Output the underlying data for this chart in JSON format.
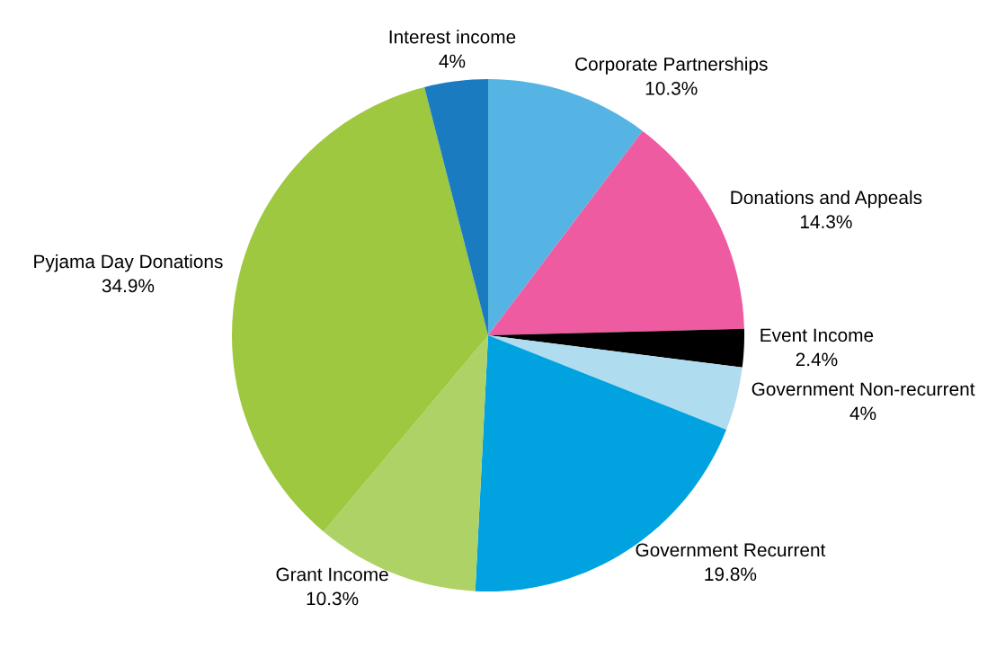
{
  "chart_data": {
    "type": "pie",
    "categories": [
      "Corporate Partnerships",
      "Donations and Appeals",
      "Event Income",
      "Government Non-recurrent",
      "Government Recurrent",
      "Grant Income",
      "Pyjama Day Donations",
      "Interest income"
    ],
    "values": [
      10.3,
      14.3,
      2.4,
      4,
      19.8,
      10.3,
      34.9,
      4
    ],
    "value_labels": [
      "10.3%",
      "14.3%",
      "2.4%",
      "4%",
      "19.8%",
      "10.3%",
      "34.9%",
      "4%"
    ],
    "colors": [
      "#56b4e4",
      "#ef5ba1",
      "#000000",
      "#b0dcf0",
      "#00a3e0",
      "#aed265",
      "#9dc83f",
      "#1b7bc1"
    ]
  }
}
